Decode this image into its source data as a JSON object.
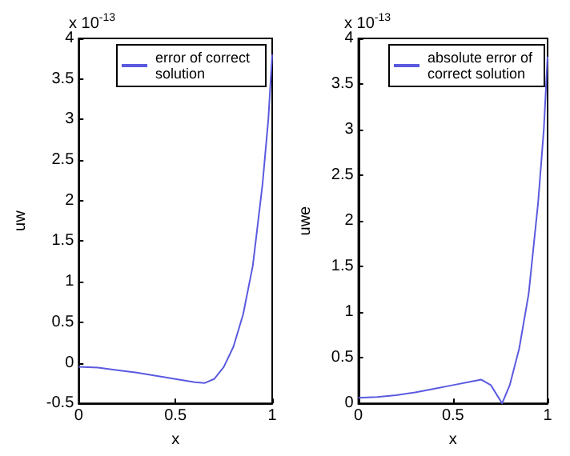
{
  "chart_data": [
    {
      "type": "line",
      "xlabel": "x",
      "ylabel": "uw",
      "annotations": [
        "x 10$^{-13}$"
      ],
      "legend": "top right",
      "grid": false,
      "x": [
        0,
        0.1,
        0.2,
        0.3,
        0.4,
        0.5,
        0.6,
        0.65,
        0.7,
        0.75,
        0.8,
        0.85,
        0.9,
        0.95,
        0.98,
        1.0
      ],
      "series": [
        {
          "name": "error of correct solution",
          "color": "#5a5ae0",
          "values": [
            -0.05,
            -0.06,
            -0.09,
            -0.12,
            -0.16,
            -0.2,
            -0.24,
            -0.25,
            -0.2,
            -0.05,
            0.2,
            0.6,
            1.2,
            2.2,
            3.0,
            3.8
          ]
        }
      ],
      "xlim": [
        0,
        1
      ],
      "xticks": [
        0,
        0.5,
        1
      ],
      "ylim": [
        -0.5,
        4
      ],
      "yticks": [
        -0.5,
        0,
        0.5,
        1,
        1.5,
        2,
        2.5,
        3,
        3.5,
        4
      ]
    },
    {
      "type": "line",
      "xlabel": "x",
      "ylabel": "uwe",
      "annotations": [
        "x 10$^{-13}$"
      ],
      "legend": "top right",
      "grid": false,
      "x": [
        0,
        0.1,
        0.2,
        0.3,
        0.4,
        0.5,
        0.6,
        0.65,
        0.7,
        0.76,
        0.8,
        0.85,
        0.9,
        0.95,
        0.98,
        1.0
      ],
      "series": [
        {
          "name": "absolute error of correct solution",
          "color": "#5a5ae0",
          "values": [
            0.06,
            0.07,
            0.09,
            0.12,
            0.16,
            0.2,
            0.24,
            0.26,
            0.2,
            0.0,
            0.2,
            0.6,
            1.2,
            2.2,
            3.0,
            3.8
          ]
        }
      ],
      "xlim": [
        0,
        1
      ],
      "xticks": [
        0,
        0.5,
        1
      ],
      "ylim": [
        0,
        4
      ],
      "yticks": [
        0,
        0.5,
        1,
        1.5,
        2,
        2.5,
        3,
        3.5,
        4
      ]
    }
  ]
}
